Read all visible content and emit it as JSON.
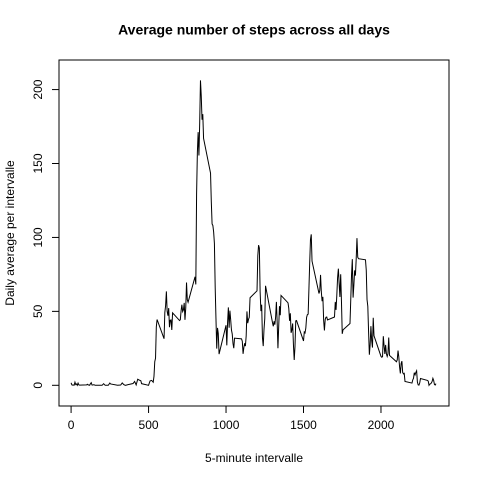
{
  "chart_data": {
    "type": "line",
    "title": "Average number of steps across all days",
    "x_label": "5-minute intervalle",
    "y_label": "Daily average per intervalle",
    "xlim": [
      -78,
      2439
    ],
    "ylim": [
      -14,
      220
    ],
    "xticks": [
      0,
      500,
      1000,
      1500,
      2000
    ],
    "yticks": [
      0,
      50,
      100,
      150,
      200
    ],
    "series": [
      {
        "color": "#000000",
        "x": [
          0,
          5,
          10,
          15,
          20,
          25,
          30,
          35,
          40,
          45,
          50,
          55,
          100,
          105,
          110,
          115,
          120,
          125,
          130,
          135,
          140,
          145,
          150,
          155,
          200,
          210,
          220,
          230,
          240,
          250,
          255,
          300,
          320,
          330,
          340,
          350,
          400,
          410,
          420,
          430,
          440,
          450,
          455,
          500,
          505,
          510,
          520,
          530,
          535,
          540,
          545,
          550,
          555,
          600,
          605,
          610,
          615,
          620,
          625,
          630,
          635,
          640,
          645,
          650,
          655,
          700,
          705,
          710,
          715,
          720,
          725,
          730,
          735,
          740,
          745,
          750,
          755,
          800,
          805,
          810,
          815,
          820,
          825,
          830,
          835,
          840,
          845,
          850,
          855,
          900,
          905,
          910,
          915,
          920,
          925,
          930,
          935,
          940,
          945,
          950,
          955,
          1000,
          1005,
          1010,
          1015,
          1020,
          1025,
          1030,
          1035,
          1040,
          1045,
          1050,
          1055,
          1100,
          1105,
          1110,
          1115,
          1120,
          1125,
          1130,
          1135,
          1140,
          1145,
          1150,
          1155,
          1200,
          1205,
          1210,
          1215,
          1220,
          1225,
          1230,
          1235,
          1240,
          1245,
          1250,
          1255,
          1300,
          1305,
          1310,
          1315,
          1320,
          1325,
          1330,
          1335,
          1340,
          1345,
          1350,
          1355,
          1400,
          1405,
          1410,
          1415,
          1420,
          1425,
          1430,
          1435,
          1440,
          1445,
          1450,
          1455,
          1500,
          1505,
          1510,
          1515,
          1520,
          1525,
          1530,
          1535,
          1540,
          1545,
          1550,
          1555,
          1600,
          1605,
          1610,
          1615,
          1620,
          1625,
          1630,
          1635,
          1640,
          1645,
          1650,
          1655,
          1700,
          1705,
          1710,
          1715,
          1720,
          1725,
          1730,
          1735,
          1740,
          1745,
          1750,
          1755,
          1800,
          1805,
          1810,
          1815,
          1820,
          1825,
          1830,
          1835,
          1840,
          1845,
          1850,
          1855,
          1900,
          1905,
          1910,
          1915,
          1920,
          1925,
          1930,
          1935,
          1940,
          1945,
          1950,
          1955,
          2000,
          2005,
          2010,
          2015,
          2020,
          2025,
          2030,
          2035,
          2040,
          2045,
          2050,
          2055,
          2100,
          2105,
          2110,
          2115,
          2120,
          2125,
          2130,
          2135,
          2140,
          2145,
          2150,
          2155,
          2200,
          2205,
          2210,
          2215,
          2220,
          2225,
          2230,
          2235,
          2240,
          2245,
          2250,
          2255,
          2300,
          2305,
          2310,
          2315,
          2320,
          2325,
          2330,
          2335,
          2340,
          2345,
          2350,
          2355
        ],
        "values": [
          1.7,
          0.3,
          0.1,
          0.2,
          0.1,
          2.1,
          0.5,
          0.9,
          0,
          1.5,
          0.3,
          0.1,
          0.3,
          0.7,
          0.2,
          0.3,
          0,
          1.1,
          1.8,
          0.2,
          0.2,
          0.4,
          0.3,
          0,
          0,
          1.1,
          0,
          0,
          0,
          1.5,
          0.9,
          0,
          0.2,
          1.6,
          0.5,
          0,
          1.2,
          2.6,
          0.3,
          4.1,
          3.5,
          3.1,
          1.1,
          0,
          1.6,
          3,
          3.3,
          2.1,
          6.1,
          16,
          18.3,
          39.5,
          44.5,
          31.5,
          49.3,
          53.8,
          63.5,
          50,
          47.1,
          52.2,
          39.3,
          44,
          44.2,
          37.4,
          49,
          43.8,
          44.4,
          50.5,
          54.5,
          49.9,
          51,
          55.7,
          44.3,
          52.3,
          69.5,
          57.8,
          56.2,
          73.4,
          68.2,
          129.4,
          157.5,
          171.2,
          155.4,
          177.3,
          206.2,
          195.9,
          179.6,
          183.4,
          167,
          143.5,
          124,
          109.1,
          108.1,
          103.7,
          95.9,
          66.2,
          45.2,
          24.8,
          38.8,
          34.98,
          21.1,
          40.6,
          26.98,
          42.4,
          52.7,
          38.9,
          50.5,
          44.3,
          37.4,
          34.7,
          28.3,
          25.1,
          31.9,
          31.4,
          29.7,
          21.3,
          25.5,
          28.4,
          26.5,
          33.4,
          49.98,
          42,
          44.6,
          46,
          59.2,
          63.9,
          87.6,
          94.8,
          92.8,
          63.4,
          50.2,
          54.5,
          32.4,
          26.5,
          37.7,
          45.1,
          67.3,
          42.3,
          39.9,
          43.3,
          40.98,
          46.2,
          56.4,
          42.8,
          25.1,
          39.97,
          53.5,
          47.4,
          60.8,
          55.8,
          51.96,
          43.6,
          48.7,
          35.5,
          37.5,
          41.8,
          27.5,
          17.1,
          26.1,
          43.6,
          43.8,
          30,
          36.1,
          35.5,
          38.8,
          45.96,
          47.8,
          48.1,
          65.3,
          82.9,
          98.7,
          102.1,
          84,
          62.1,
          64.1,
          74.7,
          63.2,
          56.9,
          59.8,
          43.9,
          37.1,
          44.5,
          46,
          46.2,
          44.2,
          46.2,
          56.4,
          51,
          61,
          72.8,
          78.9,
          68.9,
          59.7,
          75.1,
          56.5,
          34.8,
          37.5,
          41.8,
          58,
          74.7,
          85.3,
          59.3,
          67.8,
          77.7,
          74.2,
          85.3,
          99.5,
          86.6,
          85.6,
          84.9,
          77.8,
          58,
          53.4,
          36.3,
          20.7,
          27.4,
          40,
          30.2,
          25.5,
          45.7,
          33.5,
          19.6,
          19,
          19.3,
          33.2,
          26.8,
          21.2,
          27.3,
          21.3,
          19.5,
          21.3,
          32.3,
          20.2,
          15.9,
          17.2,
          23.5,
          19.2,
          12.5,
          8,
          14.7,
          16.3,
          8.7,
          7.8,
          8.1,
          2.6,
          1.5,
          3.6,
          4.8,
          8.5,
          7.1,
          8.7,
          9.8,
          2.2,
          0.3,
          0.1,
          1.6,
          4.6,
          3.3,
          2.8,
          0,
          0.8,
          1,
          1.6,
          2.6,
          4.7,
          3.3,
          0.6,
          0.2,
          1.1
        ]
      }
    ]
  }
}
